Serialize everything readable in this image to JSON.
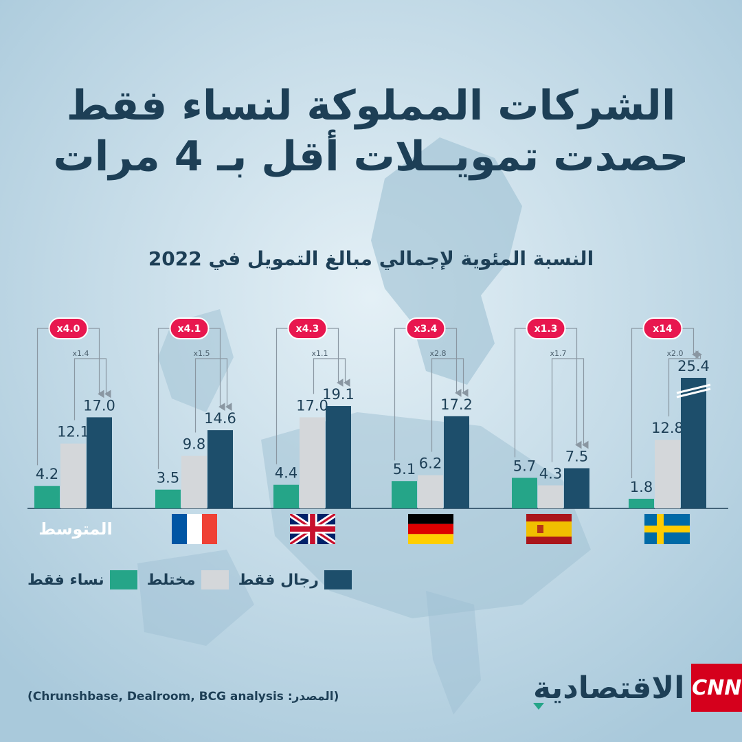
{
  "title_line1": "الشركات المملوكة لنساء فقط",
  "title_line2": "حصدت تمويــلات أقل بـ 4 مرات",
  "subtitle": "النسبة المئوية لإجمالي مبالغ التمويل في 2022",
  "colors": {
    "women_only": "#25a588",
    "mixed": "#d4d7da",
    "men_only": "#1d4e6b",
    "badge": "#e8174f",
    "title": "#1d3f56"
  },
  "chart_data": {
    "type": "bar",
    "categories": [
      "المتوسط",
      "France",
      "United Kingdom",
      "Germany",
      "Spain",
      "Sweden"
    ],
    "series": [
      {
        "name": "نساء فقط",
        "values": [
          4.2,
          3.5,
          4.4,
          5.1,
          5.7,
          1.8
        ]
      },
      {
        "name": "مختلط",
        "values": [
          12.1,
          9.8,
          17.0,
          6.2,
          4.3,
          12.8
        ]
      },
      {
        "name": "رجال فقط",
        "values": [
          17.0,
          14.6,
          19.1,
          17.2,
          7.5,
          25.4
        ]
      }
    ],
    "value_labels": [
      [
        "4.2",
        "12.1",
        "17.0"
      ],
      [
        "3.5",
        "9.8",
        "14.6"
      ],
      [
        "4.4",
        "17.0",
        "19.1"
      ],
      [
        "5.1",
        "6.2",
        "17.2"
      ],
      [
        "5.7",
        "4.3",
        "7.5"
      ],
      [
        "1.8",
        "12.8",
        "25.4"
      ]
    ],
    "ratio_women_vs_men": [
      "x4.0",
      "x4.1",
      "x4.3",
      "x3.4",
      "x1.3",
      "x14"
    ],
    "ratio_mixed_vs_men": [
      "x1.4",
      "x1.5",
      "x1.1",
      "x2.8",
      "x1.7",
      "x2.0"
    ],
    "axis_break_on": "Sweden men-only bar",
    "grid": false,
    "legend_position": "bottom-left"
  },
  "average_label": "المتوسط",
  "flags": [
    "france-flag",
    "uk-flag",
    "germany-flag",
    "spain-flag",
    "sweden-flag"
  ],
  "legend": {
    "men": "رجال فقط",
    "mixed": "مختلط",
    "women": "نساء فقط"
  },
  "source": "(Chrunshbase, Dealroom, BCG analysis :المصدر)",
  "logo": {
    "brand": "CNN",
    "word": "الاقتصادية"
  }
}
